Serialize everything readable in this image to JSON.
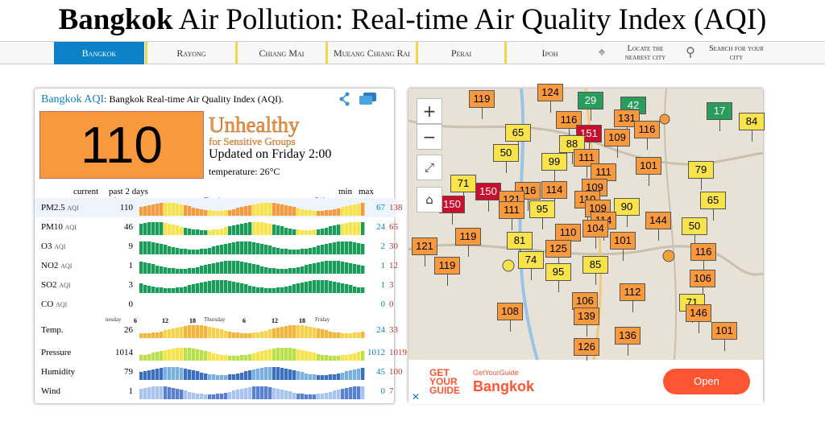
{
  "page": {
    "title_bold": "Bangkok",
    "title_rest": " Air Pollution: Real-time Air Quality Index (AQI)"
  },
  "nav": {
    "items": [
      "Bangkok",
      "Rayong",
      "Chiang Mai",
      "Mueang Chiang Rai",
      "Perai",
      "Ipoh"
    ],
    "locate_label": "Locate the nearest city",
    "search_label": "Search for your city",
    "locate_icon": "crosshair-icon",
    "search_icon": "search-icon"
  },
  "card": {
    "city_link": "Bangkok AQI",
    "header_text": ": Bangkok Real-time Air Quality Index (AQI).",
    "aqi_value": "110",
    "level": "Unhealthy",
    "sublevel": "for Sensitive Groups",
    "updated": "Updated on Friday 2:00",
    "temperature": "temperature: 26°C",
    "aqi_color": "#f8993e"
  },
  "graph": {
    "header_current": "current",
    "header_period": "past 2 days",
    "header_min": "min",
    "header_max": "max",
    "hour_ticks": [
      "6",
      "12",
      "18",
      "6",
      "12",
      "18"
    ],
    "day_labels": [
      "nesday",
      "Thursday",
      "Friday"
    ],
    "rows": [
      {
        "name": "PM2.5",
        "unit": "AQI",
        "current": "110",
        "min": "67",
        "max": "138"
      },
      {
        "name": "PM10",
        "unit": "AQI",
        "current": "46",
        "min": "24",
        "max": "65"
      },
      {
        "name": "O3",
        "unit": "AQI",
        "current": "9",
        "min": "2",
        "max": "30"
      },
      {
        "name": "NO2",
        "unit": "AQI",
        "current": "1",
        "min": "1",
        "max": "12"
      },
      {
        "name": "SO2",
        "unit": "AQI",
        "current": "3",
        "min": "1",
        "max": "3"
      },
      {
        "name": "CO",
        "unit": "AQI",
        "current": "0",
        "min": "0",
        "max": "0"
      },
      {
        "name": "Temp.",
        "unit": "",
        "current": "26",
        "min": "24",
        "max": "33"
      },
      {
        "name": "Pressure",
        "unit": "",
        "current": "1014",
        "min": "1012",
        "max": "1019"
      },
      {
        "name": "Humidity",
        "unit": "",
        "current": "79",
        "min": "45",
        "max": "100"
      },
      {
        "name": "Wind",
        "unit": "",
        "current": "1",
        "min": "0",
        "max": "7"
      }
    ]
  },
  "map": {
    "zoom_in": "+",
    "zoom_out": "−",
    "markers": [
      {
        "v": "119",
        "c": "orange",
        "x": 75,
        "y": 2
      },
      {
        "v": "124",
        "c": "orange",
        "x": 160,
        "y": -6
      },
      {
        "v": "29",
        "c": "green",
        "x": 210,
        "y": 4
      },
      {
        "v": "42",
        "c": "green",
        "x": 263,
        "y": 10
      },
      {
        "v": "17",
        "c": "green",
        "x": 370,
        "y": 17
      },
      {
        "v": "84",
        "c": "yellow",
        "x": 410,
        "y": 30
      },
      {
        "v": "65",
        "c": "yellow",
        "x": 120,
        "y": 44
      },
      {
        "v": "116",
        "c": "orange",
        "x": 183,
        "y": 28
      },
      {
        "v": "151",
        "c": "red",
        "x": 208,
        "y": 45
      },
      {
        "v": "131",
        "c": "orange",
        "x": 255,
        "y": 26
      },
      {
        "v": "116",
        "c": "orange",
        "x": 280,
        "y": 40
      },
      {
        "v": "109",
        "c": "orange",
        "x": 243,
        "y": 50
      },
      {
        "v": "50",
        "c": "yellow",
        "x": 105,
        "y": 69
      },
      {
        "v": "88",
        "c": "yellow",
        "x": 187,
        "y": 58
      },
      {
        "v": "111",
        "c": "orange",
        "x": 205,
        "y": 75
      },
      {
        "v": "99",
        "c": "yellow",
        "x": 165,
        "y": 80
      },
      {
        "v": "101",
        "c": "orange",
        "x": 282,
        "y": 85
      },
      {
        "v": "79",
        "c": "yellow",
        "x": 347,
        "y": 90
      },
      {
        "v": "71",
        "c": "yellow",
        "x": 52,
        "y": 107
      },
      {
        "v": "111",
        "c": "orange",
        "x": 226,
        "y": 93
      },
      {
        "v": "150",
        "c": "red",
        "x": 83,
        "y": 117
      },
      {
        "v": "114",
        "c": "orange",
        "x": 165,
        "y": 115
      },
      {
        "v": "109",
        "c": "orange",
        "x": 215,
        "y": 112
      },
      {
        "v": "116",
        "c": "orange",
        "x": 132,
        "y": 116
      },
      {
        "v": "121",
        "c": "orange",
        "x": 112,
        "y": 127
      },
      {
        "v": "110",
        "c": "orange",
        "x": 206,
        "y": 127
      },
      {
        "v": "65",
        "c": "yellow",
        "x": 362,
        "y": 128
      },
      {
        "v": "150",
        "c": "red",
        "x": 38,
        "y": 133
      },
      {
        "v": "111",
        "c": "orange",
        "x": 112,
        "y": 140
      },
      {
        "v": "95",
        "c": "yellow",
        "x": 150,
        "y": 139
      },
      {
        "v": "109",
        "c": "orange",
        "x": 219,
        "y": 138
      },
      {
        "v": "90",
        "c": "yellow",
        "x": 255,
        "y": 136
      },
      {
        "v": "144",
        "c": "orange",
        "x": 294,
        "y": 153
      },
      {
        "v": "114",
        "c": "orange",
        "x": 226,
        "y": 153
      },
      {
        "v": "50",
        "c": "yellow",
        "x": 339,
        "y": 160
      },
      {
        "v": "119",
        "c": "orange",
        "x": 58,
        "y": 173
      },
      {
        "v": "81",
        "c": "yellow",
        "x": 122,
        "y": 178
      },
      {
        "v": "110",
        "c": "orange",
        "x": 182,
        "y": 168
      },
      {
        "v": "104",
        "c": "orange",
        "x": 216,
        "y": 163
      },
      {
        "v": "101",
        "c": "orange",
        "x": 250,
        "y": 178
      },
      {
        "v": "121",
        "c": "orange",
        "x": 4,
        "y": 185
      },
      {
        "v": "125",
        "c": "orange",
        "x": 170,
        "y": 188
      },
      {
        "v": "74",
        "c": "yellow",
        "x": 136,
        "y": 202
      },
      {
        "v": "116",
        "c": "orange",
        "x": 350,
        "y": 192
      },
      {
        "v": "85",
        "c": "yellow",
        "x": 216,
        "y": 208
      },
      {
        "v": "119",
        "c": "orange",
        "x": 32,
        "y": 209
      },
      {
        "v": "95",
        "c": "yellow",
        "x": 170,
        "y": 217
      },
      {
        "v": "106",
        "c": "orange",
        "x": 349,
        "y": 225
      },
      {
        "v": "112",
        "c": "orange",
        "x": 262,
        "y": 242
      },
      {
        "v": "106",
        "c": "orange",
        "x": 203,
        "y": 253
      },
      {
        "v": "71",
        "c": "yellow",
        "x": 336,
        "y": 255
      },
      {
        "v": "108",
        "c": "orange",
        "x": 110,
        "y": 266
      },
      {
        "v": "139",
        "c": "orange",
        "x": 205,
        "y": 272
      },
      {
        "v": "146",
        "c": "orange",
        "x": 344,
        "y": 268
      },
      {
        "v": "101",
        "c": "orange",
        "x": 376,
        "y": 290
      },
      {
        "v": "136",
        "c": "orange",
        "x": 256,
        "y": 296
      },
      {
        "v": "126",
        "c": "orange",
        "x": 205,
        "y": 310
      }
    ]
  },
  "ad": {
    "logo_lines": [
      "GET",
      "YOUR",
      "GUIDE"
    ],
    "sub": "GetYourGuide",
    "title": "Bangkok",
    "button": "Open",
    "x": "✕"
  }
}
